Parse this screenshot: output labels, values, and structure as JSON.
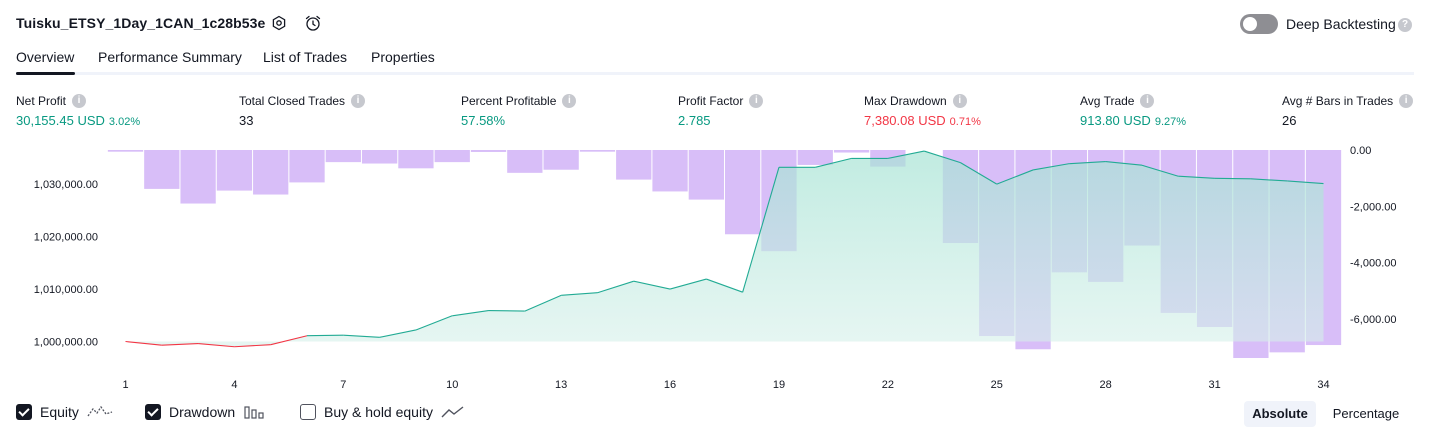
{
  "strategy": {
    "title": "Tuisku_ETSY_1Day_1CAN_1c28b53e"
  },
  "icons": {
    "settings": "gear-icon",
    "alert": "alarm-clock-icon",
    "help": "question-icon"
  },
  "deep_backtesting": {
    "label": "Deep Backtesting",
    "enabled": false
  },
  "tabs": [
    {
      "label": "Overview",
      "active": true
    },
    {
      "label": "Performance Summary",
      "active": false
    },
    {
      "label": "List of Trades",
      "active": false
    },
    {
      "label": "Properties",
      "active": false
    }
  ],
  "metrics": [
    {
      "label": "Net Profit",
      "value": "30,155.45 USD",
      "percent": "3.02%",
      "tone": "green"
    },
    {
      "label": "Total Closed Trades",
      "value": "33",
      "percent": "",
      "tone": "dark"
    },
    {
      "label": "Percent Profitable",
      "value": "57.58%",
      "percent": "",
      "tone": "green"
    },
    {
      "label": "Profit Factor",
      "value": "2.785",
      "percent": "",
      "tone": "green"
    },
    {
      "label": "Max Drawdown",
      "value": "7,380.08 USD",
      "percent": "0.71%",
      "tone": "red"
    },
    {
      "label": "Avg Trade",
      "value": "913.80 USD",
      "percent": "9.27%",
      "tone": "green"
    },
    {
      "label": "Avg # Bars in Trades",
      "value": "26",
      "percent": "",
      "tone": "dark"
    }
  ],
  "colors": {
    "equity_line": "#22ab94",
    "equity_negative": "#f23645",
    "equity_fill": "#d6f0ea",
    "drawdown_bar": "#d1b3f7",
    "profit": "#089981",
    "loss": "#f23645"
  },
  "chart_data": {
    "type": "bar",
    "x": [
      1,
      2,
      3,
      4,
      5,
      6,
      7,
      8,
      9,
      10,
      11,
      12,
      13,
      14,
      15,
      16,
      17,
      18,
      19,
      20,
      21,
      22,
      23,
      24,
      25,
      26,
      27,
      28,
      29,
      30,
      31,
      32,
      33,
      34
    ],
    "x_ticks": [
      "1",
      "4",
      "7",
      "10",
      "13",
      "16",
      "19",
      "22",
      "25",
      "28",
      "31",
      "34"
    ],
    "series": [
      {
        "axis": "left",
        "type": "area",
        "values": [
          1000000,
          999300,
          999600,
          999000,
          999400,
          1001100,
          1001200,
          1000800,
          1002200,
          1004900,
          1005900,
          1005800,
          1008800,
          1009300,
          1011500,
          1010000,
          1011900,
          1009400,
          1033200,
          1033200,
          1034900,
          1034900,
          1036300,
          1034100,
          1030000,
          1032700,
          1033900,
          1034300,
          1033600,
          1031500,
          1031100,
          1031000,
          1030600,
          1030100
        ],
        "segment_colors": "red below initial capital, green above"
      },
      {
        "axis": "right",
        "type": "bar",
        "values": [
          -60,
          -1380,
          -1900,
          -1440,
          -1580,
          -1150,
          -430,
          -480,
          -650,
          -430,
          -70,
          -810,
          -700,
          -60,
          -1050,
          -1470,
          -1760,
          -2990,
          -3590,
          -530,
          -90,
          -590,
          0,
          -3300,
          -6600,
          -7070,
          -4340,
          -4680,
          -3390,
          -5780,
          -6280,
          -7380,
          -7180,
          -6920
        ]
      }
    ],
    "y_left_ticks": [
      "1,000,000.00",
      "1,010,000.00",
      "1,020,000.00",
      "1,030,000.00"
    ],
    "y_right_ticks": [
      "0.00",
      "-2,000.00",
      "-4,000.00",
      "-6,000.00"
    ],
    "y_left_range": [
      998000,
      1036500
    ],
    "y_right_range": [
      -7380,
      0
    ]
  },
  "legend": [
    {
      "label": "Equity",
      "checked": true,
      "icon": "equity-line-icon"
    },
    {
      "label": "Drawdown",
      "checked": true,
      "icon": "drawdown-bars-icon"
    },
    {
      "label": "Buy & hold equity",
      "checked": false,
      "icon": "buy-hold-line-icon"
    }
  ],
  "display_mode": {
    "absolute": "Absolute",
    "percentage": "Percentage",
    "selected": "Absolute"
  }
}
